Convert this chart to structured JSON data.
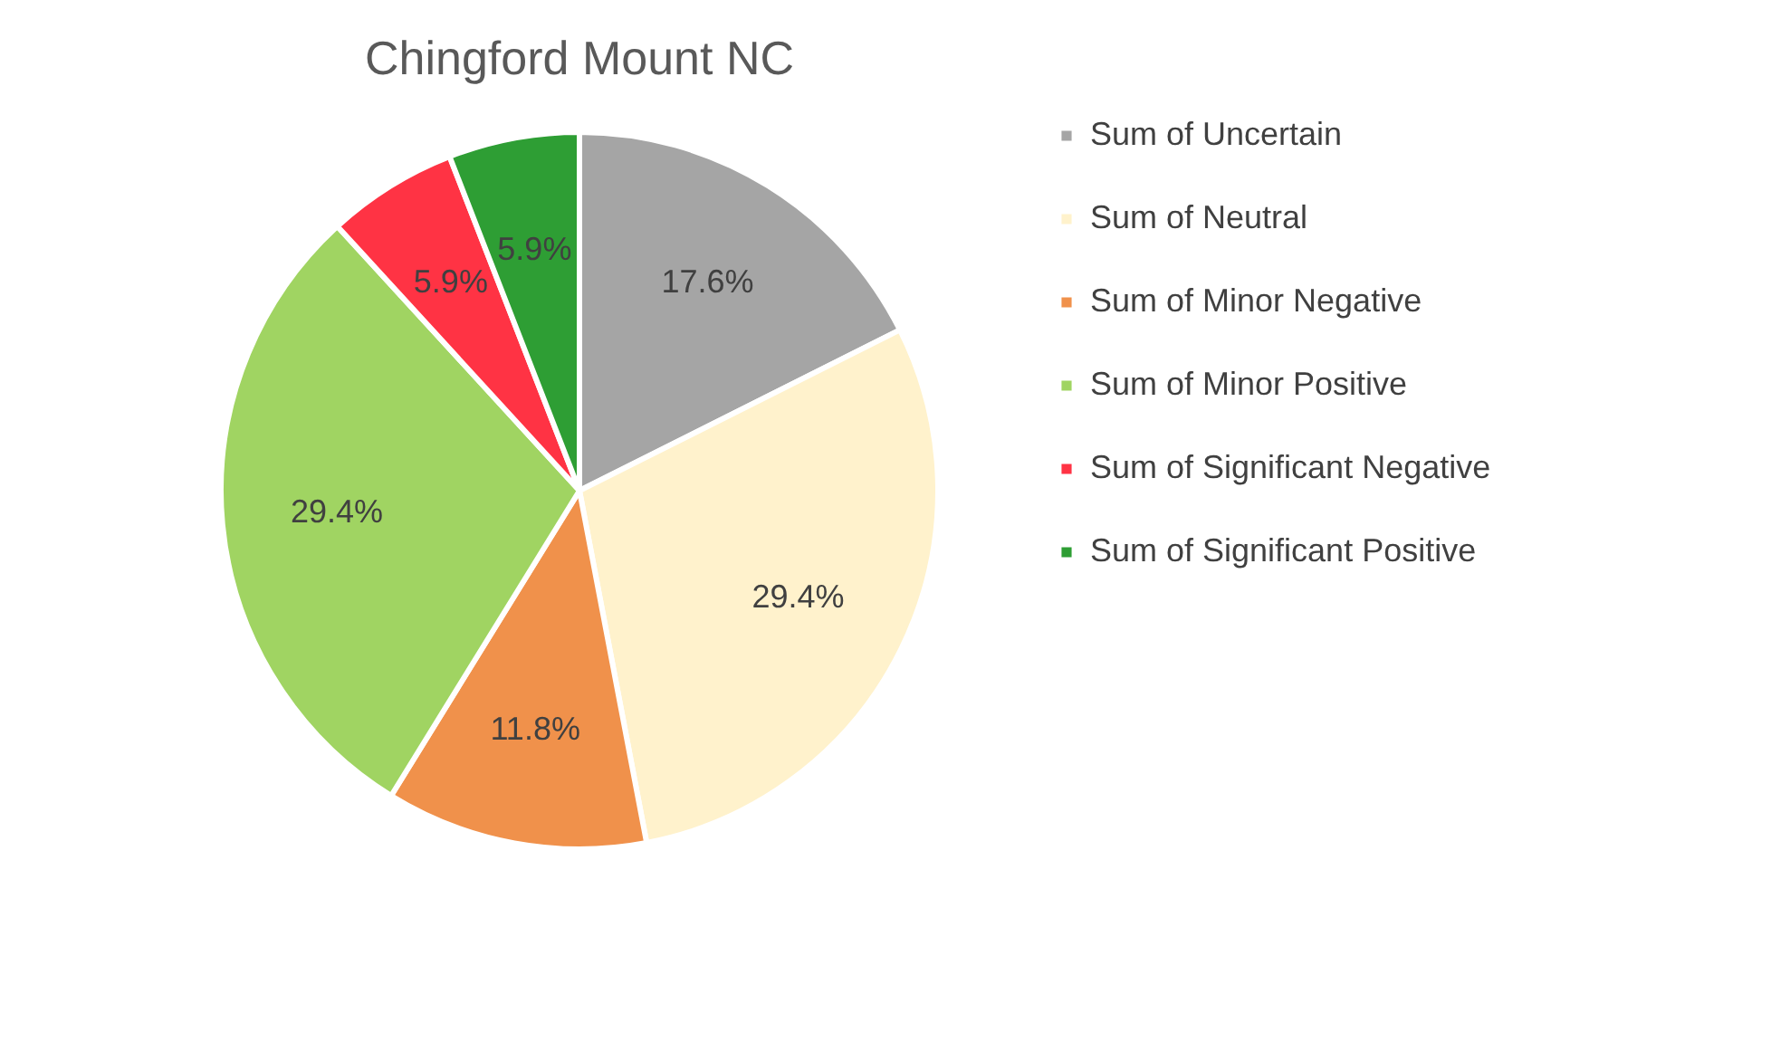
{
  "chart_data": {
    "type": "pie",
    "title": "Chingford Mount NC",
    "categories": [
      "Sum of Uncertain",
      "Sum of Neutral",
      "Sum of Minor Negative",
      "Sum of Minor Positive",
      "Sum of Significant Negative",
      "Sum of Significant Positive"
    ],
    "values": [
      17.6,
      29.4,
      11.8,
      29.4,
      5.9,
      5.9
    ],
    "colors": [
      "#a5a5a5",
      "#fff2cc",
      "#f0914b",
      "#a0d462",
      "#ff3344",
      "#2e9e34"
    ],
    "value_labels": [
      "17.6%",
      "29.4%",
      "11.8%",
      "29.4%",
      "5.9%",
      "5.9%"
    ],
    "legend": "right"
  }
}
